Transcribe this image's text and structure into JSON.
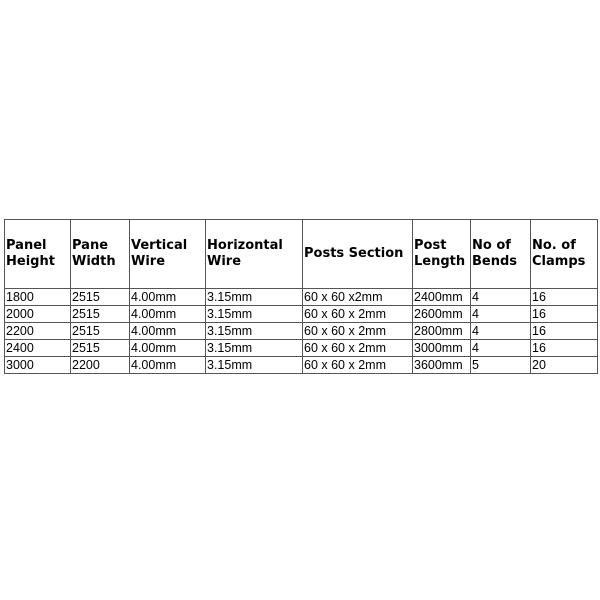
{
  "table": {
    "headers": [
      [
        "Panel",
        "Height"
      ],
      [
        "Pane",
        "Width"
      ],
      [
        "Vertical",
        "Wire"
      ],
      [
        "Horizontal",
        "Wire"
      ],
      [
        "Posts Section"
      ],
      [
        "Post",
        "Length"
      ],
      [
        "No of",
        "Bends"
      ],
      [
        "No. of",
        "Clamps"
      ]
    ],
    "rows": [
      [
        "1800",
        "2515",
        "4.00mm",
        "3.15mm",
        "60 x 60 x2mm",
        "2400mm",
        "4",
        "16"
      ],
      [
        "2000",
        "2515",
        "4.00mm",
        "3.15mm",
        "60 x 60 x 2mm",
        "2600mm",
        "4",
        "16"
      ],
      [
        "2200",
        "2515",
        "4.00mm",
        "3.15mm",
        "60 x 60 x 2mm",
        "2800mm",
        "4",
        "16"
      ],
      [
        "2400",
        "2515",
        "4.00mm",
        "3.15mm",
        "60 x 60 x 2mm",
        "3000mm",
        "4",
        "16"
      ],
      [
        "3000",
        "2200",
        "4.00mm",
        "3.15mm",
        "60 x 60 x 2mm",
        "3600mm",
        "5",
        "20"
      ]
    ]
  }
}
